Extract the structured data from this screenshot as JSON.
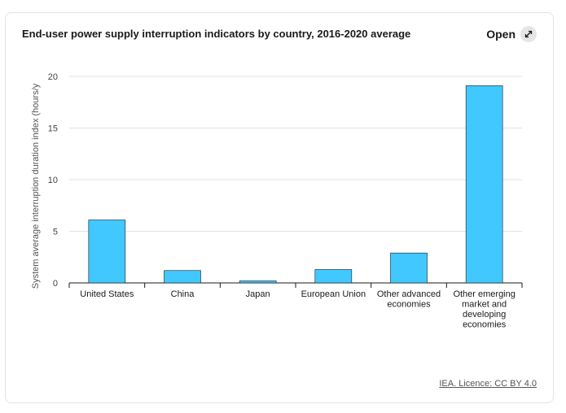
{
  "card": {
    "title": "End-user power supply interruption indicators by country, 2016-2020 average",
    "open_label": "Open",
    "open_icon": "expand-arrows-icon",
    "licence": "IEA. Licence: CC BY 4.0"
  },
  "chart_data": {
    "type": "bar",
    "title": "End-user power supply interruption indicators by country, 2016-2020 average",
    "ylabel": "System average interruption duration index (hours/y",
    "xlabel": "",
    "ylim": [
      0,
      20
    ],
    "yticks": [
      0,
      5,
      10,
      15,
      20
    ],
    "grid": true,
    "legend": "none",
    "categories": [
      [
        "United States"
      ],
      [
        "China"
      ],
      [
        "Japan"
      ],
      [
        "European Union"
      ],
      [
        "Other advanced",
        "economies"
      ],
      [
        "Other emerging",
        "market and",
        "developing",
        "economies"
      ]
    ],
    "values": [
      6.1,
      1.2,
      0.2,
      1.3,
      2.9,
      19.1
    ],
    "bar_color": "#40c8ff",
    "bar_stroke": "#1a1a1a"
  }
}
